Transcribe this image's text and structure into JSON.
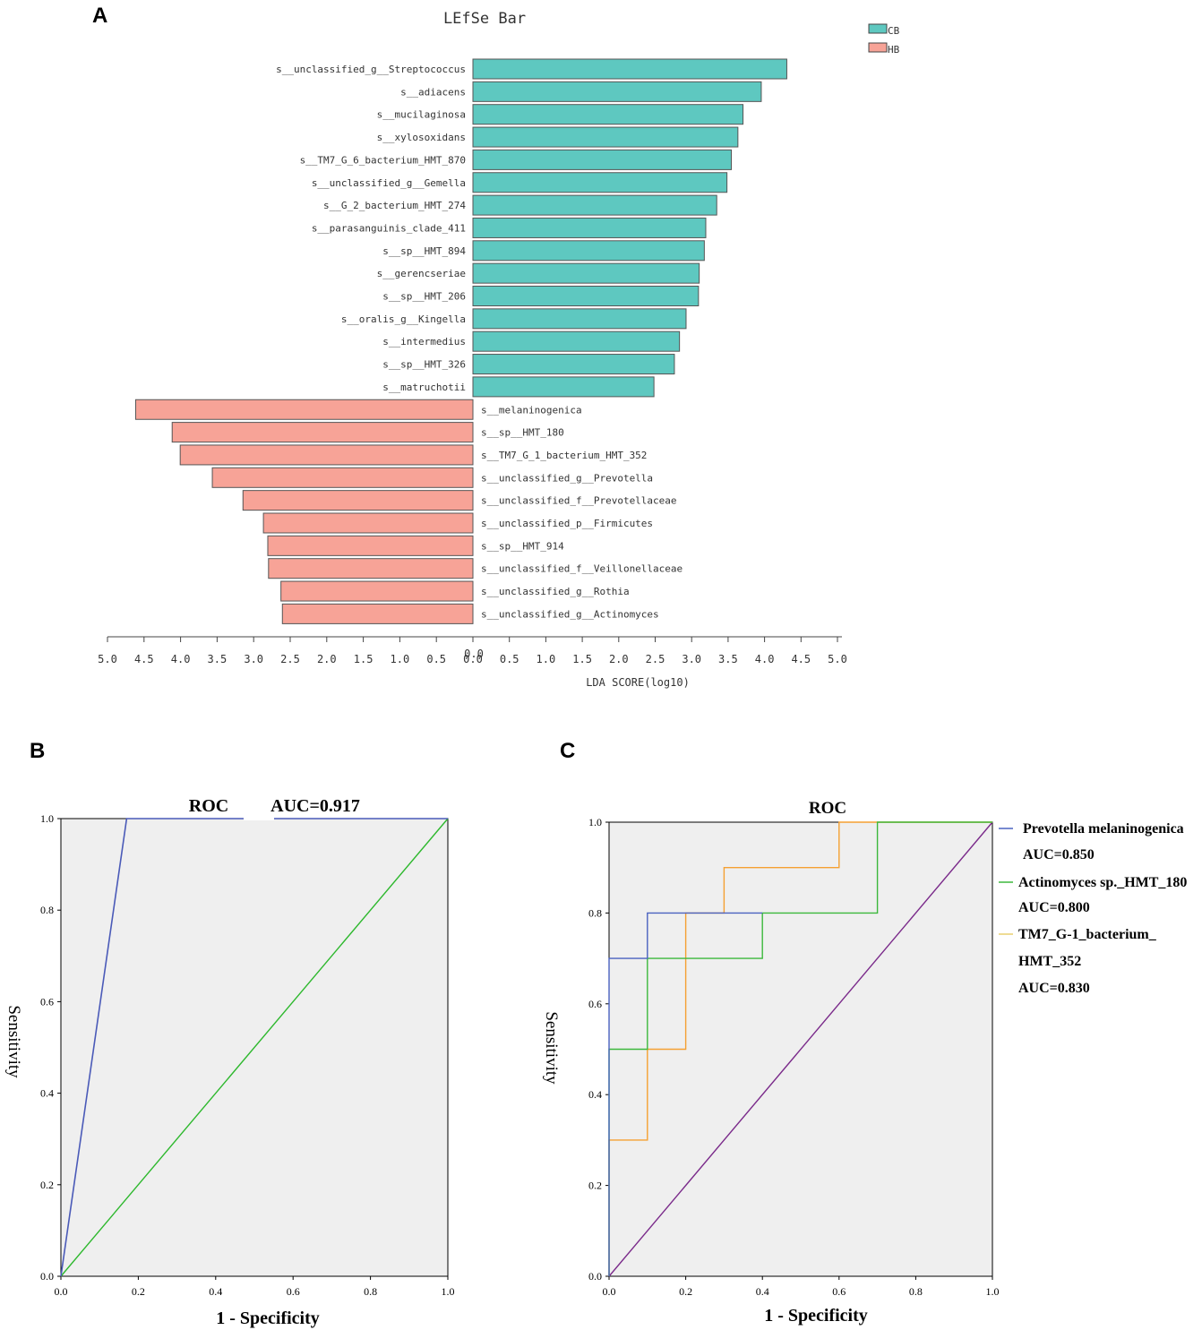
{
  "panel_labels": {
    "a": "A",
    "b": "B",
    "c": "C"
  },
  "colors": {
    "cb": "#5ec8c0",
    "hb": "#f7a397",
    "plot_bg": "#efefef",
    "roc_b_curve": "#4a5ab8",
    "roc_b_ref": "#2db82d",
    "roc_c_prevotella": "#4a62c0",
    "roc_c_actinomyces": "#3cb83c",
    "roc_c_tm7": "#f5a032",
    "roc_c_ref": "#7a2a8a"
  },
  "chart_data": [
    {
      "id": "lefse",
      "type": "bar",
      "title": "LEfSe Bar",
      "xlabel": "LDA SCORE(log10)",
      "xlim": [
        -5,
        5
      ],
      "x_ticks_left": [
        "5.0",
        "4.5",
        "4.0",
        "3.5",
        "3.0",
        "2.5",
        "2.0",
        "1.5",
        "1.0",
        "0.5",
        "0.0"
      ],
      "x_ticks_right": [
        "0.0",
        "0.5",
        "1.0",
        "1.5",
        "2.0",
        "2.5",
        "3.0",
        "3.5",
        "4.0",
        "4.5",
        "5.0"
      ],
      "legend": [
        "CB",
        "HB"
      ],
      "series": [
        {
          "name": "CB",
          "categories": [
            "s__unclassified_g__Streptococcus",
            "s__adiacens",
            "s__mucilaginosa",
            "s__xylosoxidans",
            "s__TM7_G_6_bacterium_HMT_870",
            "s__unclassified_g__Gemella",
            "s__G_2_bacterium_HMT_274",
            "s__parasanguinis_clade_411",
            "s__sp__HMT_894",
            "s__gerencseriae",
            "s__sp__HMT_206",
            "s__oralis_g__Kingella",
            "s__intermedius",
            "s__sp__HMT_326",
            "s__matruchotii"
          ],
          "values": [
            4.3,
            3.95,
            3.7,
            3.63,
            3.54,
            3.48,
            3.34,
            3.19,
            3.17,
            3.1,
            3.09,
            2.92,
            2.83,
            2.76,
            2.48
          ]
        },
        {
          "name": "HB",
          "categories": [
            "s__melaninogenica",
            "s__sp__HMT_180",
            "s__TM7_G_1_bacterium_HMT_352",
            "s__unclassified_g__Prevotella",
            "s__unclassified_f__Prevotellaceae",
            "s__unclassified_p__Firmicutes",
            "s__sp__HMT_914",
            "s__unclassified_f__Veillonellaceae",
            "s__unclassified_g__Rothia",
            "s__unclassified_g__Actinomyces"
          ],
          "values": [
            4.62,
            4.12,
            4.01,
            3.57,
            3.15,
            2.87,
            2.81,
            2.8,
            2.63,
            2.61
          ]
        }
      ]
    },
    {
      "id": "roc_b",
      "type": "line",
      "title": "ROC",
      "auc_label": "AUC=0.917",
      "xlabel": "1 - Specificity",
      "ylabel": "Sensitivity",
      "xlim": [
        0,
        1
      ],
      "ylim": [
        0,
        1
      ],
      "x_ticks": [
        "0.0",
        "0.2",
        "0.4",
        "0.6",
        "0.8",
        "1.0"
      ],
      "y_ticks": [
        "0.0",
        "0.2",
        "0.4",
        "0.6",
        "0.8",
        "1.0"
      ],
      "series": [
        {
          "name": "ROC curve",
          "x": [
            0,
            0.17,
            1.0
          ],
          "y": [
            0,
            1.0,
            1.0
          ]
        },
        {
          "name": "Reference",
          "x": [
            0,
            1
          ],
          "y": [
            0,
            1
          ]
        }
      ]
    },
    {
      "id": "roc_c",
      "type": "line",
      "title": "ROC",
      "xlabel": "1 - Specificity",
      "ylabel": "Sensitivity",
      "xlim": [
        0,
        1
      ],
      "ylim": [
        0,
        1
      ],
      "x_ticks": [
        "0.0",
        "0.2",
        "0.4",
        "0.6",
        "0.8",
        "1.0"
      ],
      "y_ticks": [
        "0.0",
        "0.2",
        "0.4",
        "0.6",
        "0.8",
        "1.0"
      ],
      "series": [
        {
          "name": "TM7_G-1_bacterium_HMT_352",
          "auc": "AUC=0.830",
          "x": [
            0,
            0,
            0.1,
            0.1,
            0.2,
            0.2,
            0.3,
            0.3,
            0.6,
            0.6,
            1.0
          ],
          "y": [
            0,
            0.3,
            0.3,
            0.5,
            0.5,
            0.8,
            0.8,
            0.9,
            0.9,
            1.0,
            1.0
          ]
        },
        {
          "name": "Actinomyces sp._HMT_180",
          "auc": "AUC=0.800",
          "x": [
            0,
            0,
            0.1,
            0.1,
            0.4,
            0.4,
            0.7,
            0.7,
            1.0
          ],
          "y": [
            0,
            0.5,
            0.5,
            0.7,
            0.7,
            0.8,
            0.8,
            1.0,
            1.0
          ]
        },
        {
          "name": "Prevotella melaninogenica",
          "auc": "AUC=0.850",
          "x": [
            0,
            0,
            0.1,
            0.1,
            0.4
          ],
          "y": [
            0,
            0.7,
            0.7,
            0.8,
            0.8
          ]
        },
        {
          "name": "Reference",
          "x": [
            0,
            1
          ],
          "y": [
            0,
            1
          ]
        }
      ],
      "legend": [
        {
          "line1": "Prevotella melaninogenica",
          "line2": "AUC=0.850"
        },
        {
          "line1": "Actinomyces sp._HMT_180",
          "line2": "AUC=0.800"
        },
        {
          "line1": "TM7_G-1_bacterium_",
          "line2": "HMT_352",
          "line3": "AUC=0.830"
        }
      ]
    }
  ]
}
